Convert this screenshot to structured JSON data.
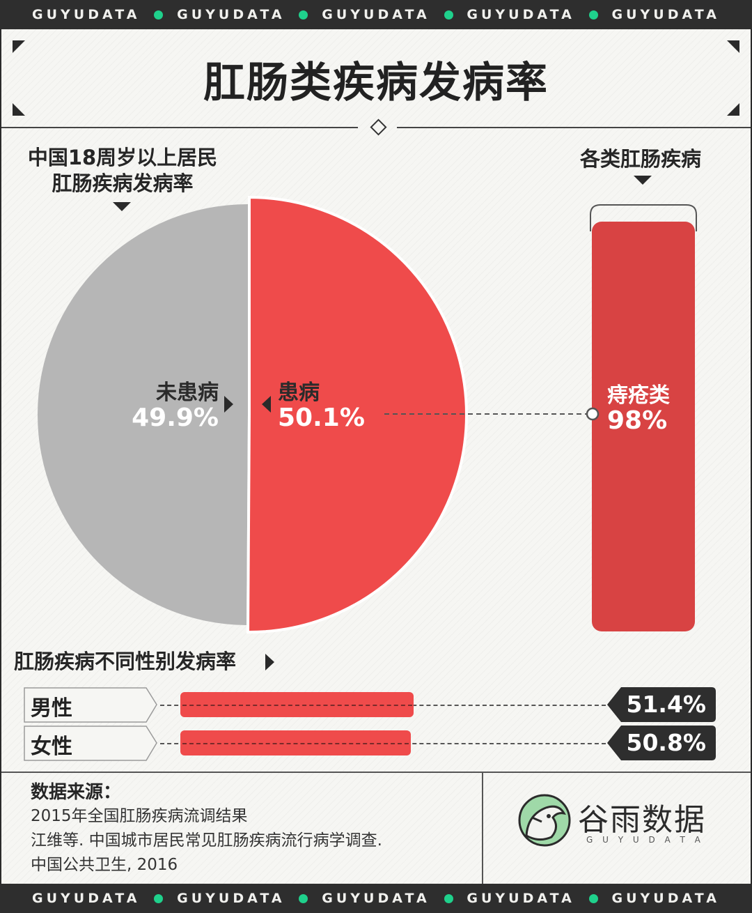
{
  "banner": {
    "word": "GUYUDATA"
  },
  "title": "肛肠类疾病发病率",
  "colors": {
    "sick": "#ef4b4b",
    "healthy": "#b6b6b6",
    "hemorrhoid": "#d84343",
    "accent_dot": "#1fd18c",
    "dark": "#2e2e2e"
  },
  "pie_section": {
    "heading_line1": "中国18周岁以上居民",
    "heading_line2": "肛肠疾病发病率"
  },
  "bar_section": {
    "heading": "各类肛肠疾病"
  },
  "gender_section": {
    "heading": "肛肠疾病不同性别发病率"
  },
  "chart_data": [
    {
      "type": "pie",
      "labels": [
        "未患病",
        "患病"
      ],
      "values": [
        49.9,
        50.1
      ],
      "value_labels": [
        "49.9%",
        "50.1%"
      ]
    },
    {
      "type": "bar",
      "categories": [
        "痔疮类"
      ],
      "values": [
        98
      ],
      "value_labels": [
        "98%"
      ]
    },
    {
      "type": "bar",
      "categories": [
        "男性",
        "女性"
      ],
      "values": [
        51.4,
        50.8
      ],
      "value_labels": [
        "51.4%",
        "50.8%"
      ]
    }
  ],
  "source": {
    "label": "数据来源：",
    "line1": "2015年全国肛肠疾病流调结果",
    "line2": "江维等. 中国城市居民常见肛肠疾病流行病学调查.",
    "line3": "中国公共卫生, 2016"
  },
  "logo": {
    "name": "谷雨数据",
    "sub": "G U Y U D A T A",
    "icon": "bird-logo-icon"
  }
}
